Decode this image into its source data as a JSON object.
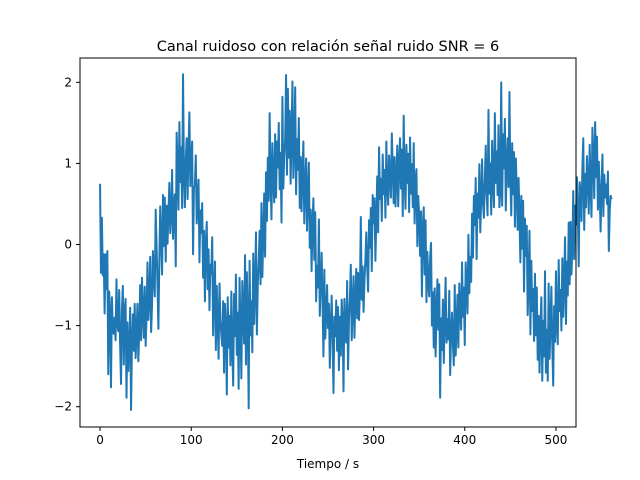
{
  "chart_data": {
    "type": "line",
    "title": "Canal ruidoso con relación señal ruido SNR = 6",
    "xlabel": "Tiempo / s",
    "ylabel": "",
    "xlim": [
      -22,
      522
    ],
    "ylim": [
      -2.25,
      2.3
    ],
    "xticks": [
      {
        "value": 0,
        "label": "0"
      },
      {
        "value": 100,
        "label": "100"
      },
      {
        "value": 200,
        "label": "200"
      },
      {
        "value": 300,
        "label": "300"
      },
      {
        "value": 400,
        "label": "400"
      },
      {
        "value": 500,
        "label": "500"
      }
    ],
    "yticks": [
      {
        "value": -2,
        "label": "−2"
      },
      {
        "value": -1,
        "label": "−1"
      },
      {
        "value": 0,
        "label": "0"
      },
      {
        "value": 1,
        "label": "1"
      },
      {
        "value": 2,
        "label": "2"
      }
    ],
    "grid": false,
    "legend": "none",
    "series": [
      {
        "color": "#1f77b4",
        "x_start": 0,
        "x_step": 1,
        "values": [
          0.75,
          -0.35,
          0.33,
          -0.38,
          -0.12,
          -0.85,
          -0.12,
          -0.55,
          -0.08,
          -1.6,
          -0.58,
          -0.86,
          -1.76,
          -0.65,
          -1.05,
          -1.1,
          -0.9,
          -1.18,
          -0.43,
          -0.98,
          -1.07,
          -0.56,
          -1.24,
          -1.72,
          -0.8,
          -0.51,
          -1.48,
          -0.83,
          -0.67,
          -1.89,
          -0.96,
          -1.56,
          -1.29,
          -0.78,
          -2.04,
          -1.21,
          -0.86,
          -1.31,
          -0.73,
          -1.4,
          -1.12,
          -0.73,
          -1.44,
          -1.04,
          -0.5,
          -1.18,
          -0.41,
          -0.85,
          -1.15,
          -0.52,
          -1.25,
          -0.89,
          -0.22,
          -0.93,
          -0.66,
          -0.15,
          -1.08,
          -0.75,
          -0.08,
          -0.4,
          -0.64,
          0.43,
          -0.02,
          -0.5,
          -1.04,
          -0.2,
          0.47,
          0.04,
          -0.37,
          0.61,
          -0.02,
          0.58,
          -0.21,
          0.48,
          0.01,
          0.4,
          0.76,
          0.14,
          0.36,
          0.92,
          0.07,
          0.48,
          0.62,
          -0.27,
          1.38,
          0.93,
          0.43,
          1.51,
          0.77,
          1.2,
          0.45,
          2.1,
          0.87,
          0.46,
          1.03,
          1.31,
          0.56,
          1.19,
          1.63,
          0.72,
          1.07,
          1.27,
          -0.12,
          0.71,
          0.72,
          1.1,
          0.26,
          0.58,
          0.8,
          -0.22,
          0.42,
          0.14,
          0.51,
          -0.41,
          0.17,
          -0.7,
          0.01,
          0.28,
          -0.55,
          -0.06,
          -0.81,
          -0.25,
          -0.36,
          0.09,
          -1.12,
          -0.6,
          -0.21,
          -1.3,
          -0.51,
          -0.93,
          -1.41,
          -0.48,
          -0.93,
          -1.11,
          -1.25,
          -0.7,
          -1.58,
          -0.73,
          -1.01,
          -1.85,
          -0.65,
          -1.27,
          -0.88,
          -1.49,
          -0.58,
          -1.25,
          -1.74,
          -0.61,
          -1.13,
          -0.37,
          -1.36,
          -0.84,
          -1.78,
          -0.41,
          -1.02,
          -1.65,
          -0.45,
          -0.82,
          -1.22,
          -0.13,
          -1.48,
          -0.34,
          -0.88,
          -2.02,
          -0.2,
          -1.12,
          -0.7,
          -1.33,
          -0.11,
          -0.98,
          -0.57,
          0.15,
          -1.11,
          -0.48,
          -0.2,
          0.17,
          -0.49,
          0.51,
          -0.4,
          0.11,
          0.63,
          -0.15,
          0.89,
          0.29,
          1.07,
          0.54,
          1.62,
          0.81,
          0.31,
          1.25,
          0.81,
          0.52,
          1.36,
          0.58,
          1.27,
          0.95,
          1.5,
          0.68,
          1.13,
          0.27,
          1.82,
          0.69,
          1.07,
          1.29,
          2.09,
          0.86,
          1.92,
          1.07,
          1.65,
          0.75,
          1.35,
          2.01,
          0.82,
          1.17,
          1.94,
          0.62,
          1.3,
          0.92,
          1.56,
          0.45,
          1.08,
          0.41,
          0.91,
          1.27,
          0.26,
          0.72,
          1.06,
          0.17,
          0.67,
          1.01,
          -0.04,
          0.43,
          -0.33,
          0.26,
          0.57,
          -0.19,
          0.4,
          -0.7,
          -0.26,
          -0.53,
          0.31,
          -0.88,
          -0.47,
          -0.1,
          -0.68,
          -1.38,
          -0.31,
          -1.16,
          -0.87,
          -0.5,
          -1.03,
          -0.73,
          -1.52,
          -1.02,
          -0.63,
          -1.13,
          -1.83,
          -0.89,
          -1.13,
          -0.69,
          -1.31,
          -0.77,
          -1.55,
          -0.89,
          -1.37,
          -0.68,
          -0.93,
          -1.81,
          -0.67,
          -1.12,
          -1.21,
          -0.45,
          -1.54,
          -0.93,
          -0.66,
          -0.25,
          -1.18,
          -0.78,
          -0.39,
          -1.15,
          -0.68,
          -0.3,
          -0.91,
          -0.35,
          -0.93,
          -0.58,
          0.34,
          -0.68,
          -0.27,
          -0.83,
          -0.44,
          -0.19,
          0.15,
          -0.28,
          -0.58,
          0.3,
          -0.04,
          0.45,
          -0.33,
          0.61,
          0.26,
          0.57,
          -0.2,
          0.33,
          0.84,
          0.15,
          1.2,
          0.56,
          0.81,
          0.29,
          1.11,
          0.62,
          0.92,
          0.33,
          1.27,
          0.73,
          0.49,
          1.1,
          0.82,
          0.58,
          1.37,
          0.95,
          0.51,
          1.08,
          0.47,
          0.82,
          1.22,
          0.47,
          0.98,
          1.31,
          0.69,
          1.17,
          0.35,
          1.59,
          0.82,
          0.44,
          1.23,
          0.76,
          1.12,
          0.4,
          1.32,
          0.63,
          0.99,
          0.46,
          1.25,
          0.26,
          0.77,
          0.93,
          -0.02,
          0.6,
          0.35,
          -0.14,
          0.41,
          -0.64,
          0.2,
          0.46,
          -0.37,
          0.3,
          -0.71,
          -0.09,
          -0.46,
          -0.64,
          -0.16,
          0.02,
          -1.0,
          -0.59,
          -1.27,
          -0.54,
          -1.38,
          -0.84,
          -0.43,
          -1.05,
          -0.49,
          -1.89,
          -0.91,
          -1.3,
          -0.68,
          -1.46,
          -0.91,
          -0.41,
          -1.21,
          -0.92,
          -1.17,
          -0.57,
          -1.61,
          -1.1,
          -0.84,
          -1.23,
          -1.49,
          -0.5,
          -1.37,
          -1.06,
          -0.62,
          -1.27,
          -0.48,
          -0.79,
          -1.05,
          -0.22,
          -0.89,
          -0.53,
          -1.24,
          -0.22,
          -0.49,
          -0.85,
          0.12,
          -0.6,
          -0.15,
          -0.46,
          0.38,
          -0.16,
          0.6,
          0.24,
          0.82,
          -0.18,
          0.63,
          0.33,
          0.99,
          0.15,
          0.55,
          1.05,
          0.5,
          0.33,
          0.81,
          1.22,
          0.61,
          0.36,
          1.66,
          0.63,
          1.0,
          0.37,
          1.28,
          0.8,
          0.46,
          1.62,
          0.76,
          1.15,
          0.61,
          1.47,
          0.46,
          0.68,
          2.0,
          0.48,
          1.36,
          0.94,
          1.55,
          0.42,
          0.98,
          1.31,
          0.71,
          1.88,
          0.81,
          0.36,
          1.25,
          0.62,
          1.14,
          0.22,
          1.06,
          0.69,
          0.18,
          0.82,
          0.36,
          -0.22,
          0.6,
          -0.05,
          0.54,
          -0.58,
          0.32,
          -0.14,
          0.23,
          -0.87,
          -0.44,
          0.17,
          -1.11,
          -0.2,
          -0.82,
          -0.55,
          -1.19,
          -0.36,
          -1.12,
          -0.53,
          -1.42,
          -0.88,
          -1.58,
          -1.0,
          -0.65,
          -1.68,
          -0.94,
          -1.38,
          -0.33,
          -1.58,
          -1.05,
          -1.68,
          -0.48,
          -1.41,
          -1.0,
          -0.52,
          -1.24,
          -1.74,
          -0.76,
          -1.2,
          -0.33,
          -1.01,
          -1.23,
          -0.19,
          -0.82,
          -0.56,
          -1.06,
          -0.17,
          -0.89,
          -0.48,
          0.09,
          -0.98,
          -0.21,
          -0.63,
          0.27,
          -0.49,
          0.28,
          -0.37,
          -0.03,
          0.66,
          -0.18,
          0.48,
          0.24,
          0.83,
          0.39,
          -0.27,
          0.77,
          0.63,
          0.29,
          0.94,
          1.31,
          0.18,
          0.87,
          0.46,
          1.09,
          0.83,
          0.38,
          1.23,
          0.74,
          0.34,
          1.44,
          1.08,
          0.57,
          1.51,
          0.83,
          1.33,
          0.43,
          1.02,
          0.64,
          0.16,
          0.74,
          1.11,
          0.35,
          0.86,
          0.58,
          0.74,
          0.5,
          0.9,
          -0.08,
          0.42,
          0.6,
          0.56
        ]
      }
    ]
  }
}
